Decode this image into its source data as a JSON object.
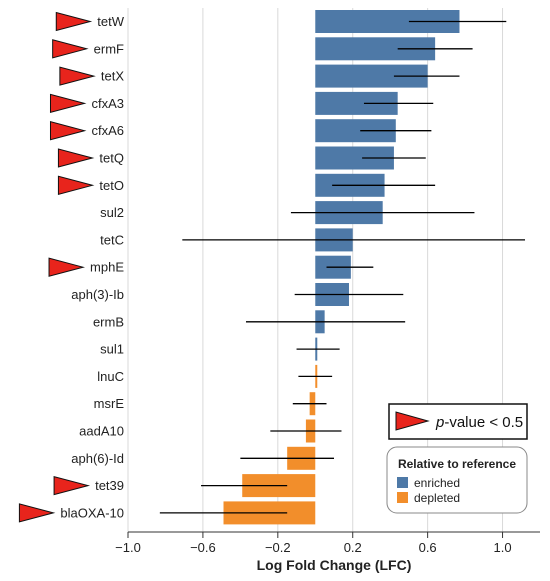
{
  "chart_data": {
    "type": "bar",
    "orientation": "horizontal",
    "title": "",
    "xlabel": "Log Fold Change (LFC)",
    "ylabel": "",
    "xlim": [
      -1.0,
      1.2
    ],
    "x_ticks": [
      -1.0,
      -0.6,
      -0.2,
      0.2,
      0.6,
      1.0
    ],
    "x_tick_labels": [
      "−1.0",
      "−0.6",
      "−0.2",
      "0.2",
      "0.6",
      "1.0"
    ],
    "grid": true,
    "categories": [
      "tetW",
      "ermF",
      "tetX",
      "cfxA3",
      "cfxA6",
      "tetQ",
      "tetO",
      "sul2",
      "tetC",
      "mphE",
      "aph(3)-Ib",
      "ermB",
      "sul1",
      "lnuC",
      "msrE",
      "aadA10",
      "aph(6)-Id",
      "tet39",
      "blaOXA-10"
    ],
    "values": [
      0.77,
      0.64,
      0.6,
      0.44,
      0.43,
      0.42,
      0.37,
      0.36,
      0.2,
      0.19,
      0.18,
      0.05,
      0.01,
      0.0,
      -0.03,
      -0.05,
      -0.15,
      -0.39,
      -0.49
    ],
    "error_low": [
      0.5,
      0.44,
      0.42,
      0.26,
      0.24,
      0.25,
      0.09,
      -0.13,
      -0.71,
      0.06,
      -0.11,
      -0.37,
      -0.1,
      -0.09,
      -0.12,
      -0.24,
      -0.4,
      -0.61,
      -0.83
    ],
    "error_high": [
      1.02,
      0.84,
      0.77,
      0.63,
      0.62,
      0.59,
      0.64,
      0.85,
      1.12,
      0.31,
      0.47,
      0.48,
      0.13,
      0.09,
      0.06,
      0.14,
      0.1,
      -0.15,
      -0.15
    ],
    "series_group": [
      "enriched",
      "enriched",
      "enriched",
      "enriched",
      "enriched",
      "enriched",
      "enriched",
      "enriched",
      "enriched",
      "enriched",
      "enriched",
      "enriched",
      "enriched",
      "depleted",
      "depleted",
      "depleted",
      "depleted",
      "depleted",
      "depleted"
    ],
    "significant": [
      true,
      true,
      true,
      true,
      true,
      true,
      true,
      false,
      false,
      true,
      false,
      false,
      false,
      false,
      false,
      false,
      false,
      true,
      true
    ],
    "legend": {
      "title": "Relative to reference",
      "placement": "bottom-right",
      "items": [
        {
          "label": "enriched",
          "color": "#4e79a7"
        },
        {
          "label": "depleted",
          "color": "#f28e2b"
        }
      ]
    },
    "significance_legend": {
      "label_italic": "p",
      "label_rest": "-value < 0.5",
      "marker_color": "#e8241c",
      "placement": "right"
    }
  }
}
